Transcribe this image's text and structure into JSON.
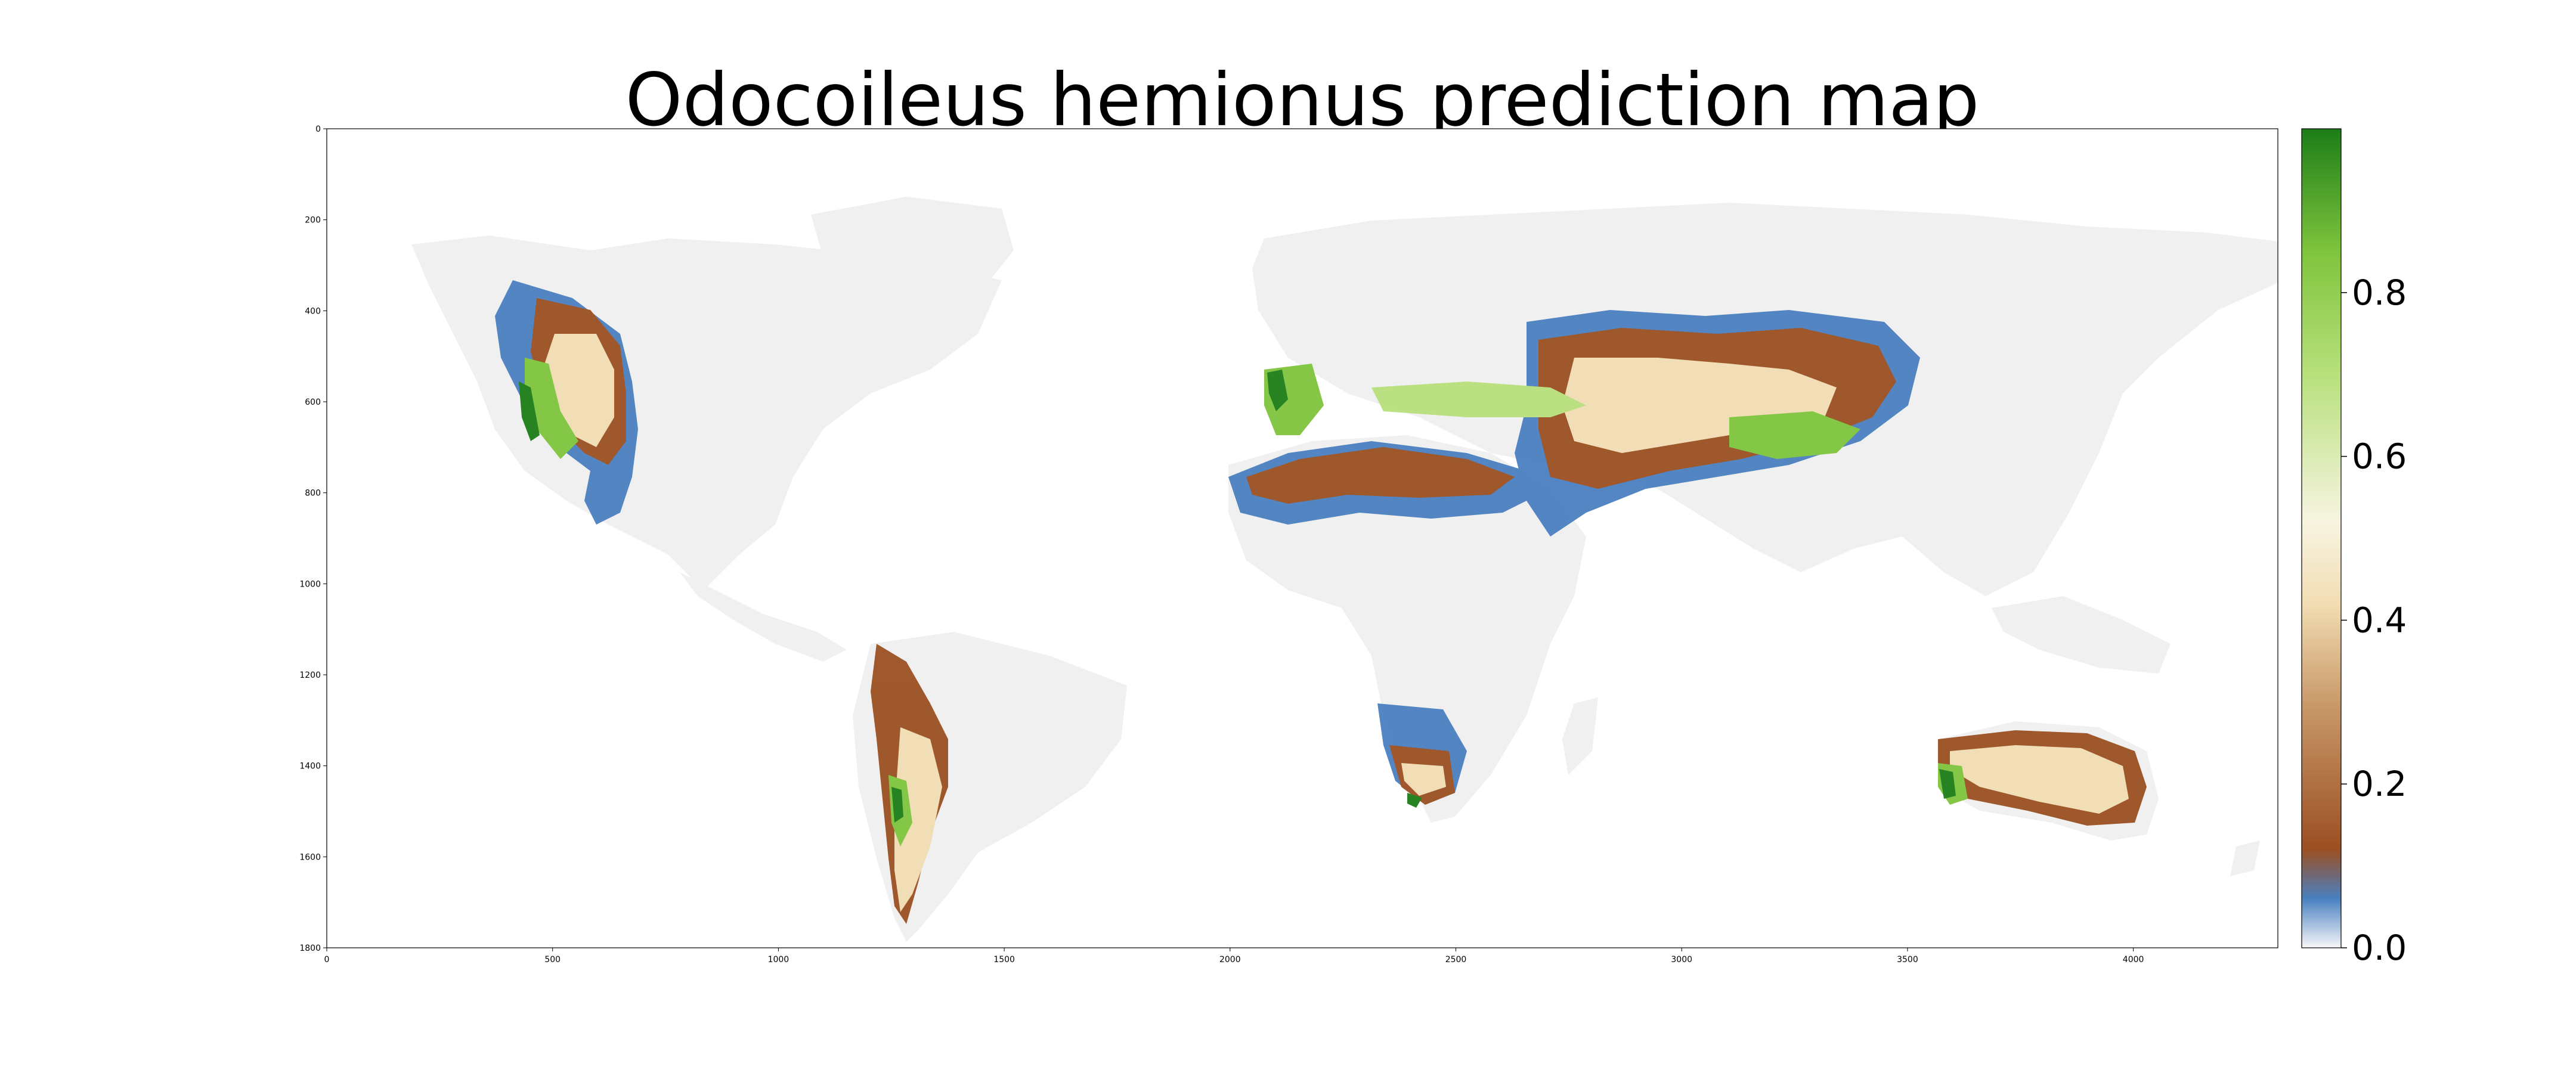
{
  "title": "Odocoileus hemionus prediction map",
  "x_axis": {
    "range": [
      0,
      4320
    ],
    "ticks": [
      "0",
      "500",
      "1000",
      "1500",
      "2000",
      "2500",
      "3000",
      "3500",
      "4000"
    ]
  },
  "y_axis": {
    "range": [
      0,
      1800
    ],
    "inverted": true,
    "ticks": [
      "0",
      "200",
      "400",
      "600",
      "800",
      "1000",
      "1200",
      "1400",
      "1600",
      "1800"
    ]
  },
  "colorbar": {
    "range": [
      0,
      1
    ],
    "ticks": [
      "0.0",
      "0.2",
      "0.4",
      "0.6",
      "0.8"
    ],
    "colormap": [
      "#f7f7f7",
      "#4a80c0",
      "#9b4f22",
      "#c99a6b",
      "#f2ddb3",
      "#f7f4e1",
      "#b8e07c",
      "#7fc43d",
      "#1d7d18"
    ]
  },
  "colors": {
    "land": "#f0f0f0",
    "low": "#4a80c0",
    "mid_low": "#9b4f22",
    "mid": "#f2ddb3",
    "high": "#7fc43d",
    "very_high": "#1d7d18"
  },
  "chart_data": {
    "type": "heatmap",
    "title": "Odocoileus hemionus prediction map",
    "xlim": [
      0,
      4320
    ],
    "ylim": [
      1800,
      0
    ],
    "value_range": [
      0,
      1
    ],
    "grid": false,
    "colorbar": "right"
  }
}
